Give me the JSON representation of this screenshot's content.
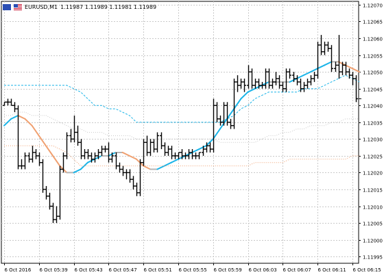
{
  "header": {
    "symbol": "EURUSD,M1",
    "ohlc": "1.11987 1.11989 1.11981 1.11989",
    "flags": [
      "flag-eu-icon",
      "flag-us-icon"
    ]
  },
  "chart_data": {
    "type": "candlestick",
    "symbol": "EURUSD",
    "timeframe": "M1",
    "ylim": [
      1.11993,
      1.12071
    ],
    "y_ticks": [
      "1.12070",
      "1.12065",
      "1.12060",
      "1.12055",
      "1.12050",
      "1.12045",
      "1.12040",
      "1.12035",
      "1.12030",
      "1.12025",
      "1.12020",
      "1.12015",
      "1.12010",
      "1.12005",
      "1.12000",
      "1.11995"
    ],
    "x_ticks": [
      "6 Oct 2016",
      "6 Oct 05:39",
      "6 Oct 05:43",
      "6 Oct 05:47",
      "6 Oct 05:51",
      "6 Oct 05:55",
      "6 Oct 05:59",
      "6 Oct 06:03",
      "6 Oct 06:07",
      "6 Oct 06:11",
      "6 Oct 06:15"
    ],
    "x_tick_bars": [
      0,
      10,
      20,
      30,
      40,
      50,
      60,
      70,
      80,
      90,
      100
    ],
    "grid": true,
    "bar_colors": {
      "up": "#000000",
      "down": "#000000"
    },
    "bars": [
      {
        "o": 1.1204,
        "h": 1.12041,
        "l": 1.1204,
        "c": 1.12041
      },
      {
        "o": 1.12041,
        "h": 1.12042,
        "l": 1.1204,
        "c": 1.12041
      },
      {
        "o": 1.12041,
        "h": 1.12042,
        "l": 1.1204,
        "c": 1.1204
      },
      {
        "o": 1.1204,
        "h": 1.12041,
        "l": 1.12038,
        "c": 1.12039
      },
      {
        "o": 1.12039,
        "h": 1.1204,
        "l": 1.12021,
        "c": 1.12022
      },
      {
        "o": 1.12022,
        "h": 1.12024,
        "l": 1.12021,
        "c": 1.12022
      },
      {
        "o": 1.12022,
        "h": 1.12026,
        "l": 1.12021,
        "c": 1.12025
      },
      {
        "o": 1.12025,
        "h": 1.12026,
        "l": 1.12023,
        "c": 1.12024
      },
      {
        "o": 1.12024,
        "h": 1.12028,
        "l": 1.12023,
        "c": 1.12026
      },
      {
        "o": 1.12026,
        "h": 1.12027,
        "l": 1.12024,
        "c": 1.12025
      },
      {
        "o": 1.12025,
        "h": 1.12026,
        "l": 1.12022,
        "c": 1.12023
      },
      {
        "o": 1.12023,
        "h": 1.12024,
        "l": 1.12014,
        "c": 1.12015
      },
      {
        "o": 1.12015,
        "h": 1.12016,
        "l": 1.12012,
        "c": 1.12013
      },
      {
        "o": 1.12013,
        "h": 1.12014,
        "l": 1.12009,
        "c": 1.1201
      },
      {
        "o": 1.1201,
        "h": 1.12011,
        "l": 1.12005,
        "c": 1.12006
      },
      {
        "o": 1.12006,
        "h": 1.1201,
        "l": 1.12005,
        "c": 1.12007
      },
      {
        "o": 1.12007,
        "h": 1.12022,
        "l": 1.12006,
        "c": 1.12021
      },
      {
        "o": 1.12021,
        "h": 1.12026,
        "l": 1.1202,
        "c": 1.12025
      },
      {
        "o": 1.12025,
        "h": 1.12032,
        "l": 1.12024,
        "c": 1.12031
      },
      {
        "o": 1.12031,
        "h": 1.12033,
        "l": 1.12029,
        "c": 1.1203
      },
      {
        "o": 1.1203,
        "h": 1.12037,
        "l": 1.12029,
        "c": 1.12032
      },
      {
        "o": 1.12032,
        "h": 1.12034,
        "l": 1.12028,
        "c": 1.12029
      },
      {
        "o": 1.12029,
        "h": 1.1203,
        "l": 1.12024,
        "c": 1.12025
      },
      {
        "o": 1.12025,
        "h": 1.12027,
        "l": 1.12024,
        "c": 1.12026
      },
      {
        "o": 1.12026,
        "h": 1.12027,
        "l": 1.12024,
        "c": 1.12025
      },
      {
        "o": 1.12025,
        "h": 1.12026,
        "l": 1.12023,
        "c": 1.12024
      },
      {
        "o": 1.12024,
        "h": 1.12026,
        "l": 1.12023,
        "c": 1.12025
      },
      {
        "o": 1.12025,
        "h": 1.12027,
        "l": 1.12024,
        "c": 1.12026
      },
      {
        "o": 1.12026,
        "h": 1.12028,
        "l": 1.12025,
        "c": 1.12027
      },
      {
        "o": 1.12027,
        "h": 1.12028,
        "l": 1.12026,
        "c": 1.12027
      },
      {
        "o": 1.12027,
        "h": 1.12029,
        "l": 1.12023,
        "c": 1.12024
      },
      {
        "o": 1.12024,
        "h": 1.12026,
        "l": 1.12023,
        "c": 1.12025
      },
      {
        "o": 1.12025,
        "h": 1.12026,
        "l": 1.12021,
        "c": 1.12022
      },
      {
        "o": 1.12022,
        "h": 1.12023,
        "l": 1.1202,
        "c": 1.12021
      },
      {
        "o": 1.12021,
        "h": 1.12022,
        "l": 1.12019,
        "c": 1.1202
      },
      {
        "o": 1.1202,
        "h": 1.12021,
        "l": 1.12018,
        "c": 1.1202
      },
      {
        "o": 1.1202,
        "h": 1.12021,
        "l": 1.12017,
        "c": 1.12018
      },
      {
        "o": 1.12018,
        "h": 1.12019,
        "l": 1.12015,
        "c": 1.12016
      },
      {
        "o": 1.12016,
        "h": 1.12017,
        "l": 1.12013,
        "c": 1.12014
      },
      {
        "o": 1.12014,
        "h": 1.12024,
        "l": 1.12013,
        "c": 1.12023
      },
      {
        "o": 1.12023,
        "h": 1.1203,
        "l": 1.12022,
        "c": 1.12029
      },
      {
        "o": 1.12029,
        "h": 1.12031,
        "l": 1.12025,
        "c": 1.12026
      },
      {
        "o": 1.12026,
        "h": 1.1203,
        "l": 1.12025,
        "c": 1.12029
      },
      {
        "o": 1.12029,
        "h": 1.1203,
        "l": 1.12026,
        "c": 1.12027
      },
      {
        "o": 1.12027,
        "h": 1.12032,
        "l": 1.12026,
        "c": 1.12031
      },
      {
        "o": 1.12031,
        "h": 1.12032,
        "l": 1.12027,
        "c": 1.12028
      },
      {
        "o": 1.12028,
        "h": 1.12029,
        "l": 1.12025,
        "c": 1.12026
      },
      {
        "o": 1.12026,
        "h": 1.12028,
        "l": 1.12025,
        "c": 1.12027
      },
      {
        "o": 1.12027,
        "h": 1.12028,
        "l": 1.12024,
        "c": 1.12025
      },
      {
        "o": 1.12025,
        "h": 1.12026,
        "l": 1.12024,
        "c": 1.12025
      },
      {
        "o": 1.12025,
        "h": 1.12026,
        "l": 1.12024,
        "c": 1.12026
      },
      {
        "o": 1.12026,
        "h": 1.12027,
        "l": 1.12024,
        "c": 1.12025
      },
      {
        "o": 1.12025,
        "h": 1.12026,
        "l": 1.12024,
        "c": 1.12025
      },
      {
        "o": 1.12025,
        "h": 1.12027,
        "l": 1.12024,
        "c": 1.12026
      },
      {
        "o": 1.12026,
        "h": 1.12027,
        "l": 1.12024,
        "c": 1.12025
      },
      {
        "o": 1.12025,
        "h": 1.12026,
        "l": 1.12024,
        "c": 1.12025
      },
      {
        "o": 1.12025,
        "h": 1.12026,
        "l": 1.12024,
        "c": 1.12026
      },
      {
        "o": 1.12026,
        "h": 1.12028,
        "l": 1.12025,
        "c": 1.12027
      },
      {
        "o": 1.12027,
        "h": 1.12029,
        "l": 1.12026,
        "c": 1.12028
      },
      {
        "o": 1.12028,
        "h": 1.12029,
        "l": 1.12026,
        "c": 1.12027
      },
      {
        "o": 1.12027,
        "h": 1.12042,
        "l": 1.12026,
        "c": 1.1204
      },
      {
        "o": 1.1204,
        "h": 1.12041,
        "l": 1.12035,
        "c": 1.12036
      },
      {
        "o": 1.12036,
        "h": 1.12037,
        "l": 1.12034,
        "c": 1.12035
      },
      {
        "o": 1.12035,
        "h": 1.12041,
        "l": 1.12034,
        "c": 1.1204
      },
      {
        "o": 1.1204,
        "h": 1.12041,
        "l": 1.12034,
        "c": 1.12035
      },
      {
        "o": 1.12035,
        "h": 1.12036,
        "l": 1.12033,
        "c": 1.12034
      },
      {
        "o": 1.12034,
        "h": 1.12048,
        "l": 1.12033,
        "c": 1.12047
      },
      {
        "o": 1.12047,
        "h": 1.12049,
        "l": 1.12044,
        "c": 1.12046
      },
      {
        "o": 1.12046,
        "h": 1.12048,
        "l": 1.12045,
        "c": 1.12047
      },
      {
        "o": 1.12047,
        "h": 1.12048,
        "l": 1.12044,
        "c": 1.12046
      },
      {
        "o": 1.12046,
        "h": 1.12052,
        "l": 1.12045,
        "c": 1.1205
      },
      {
        "o": 1.1205,
        "h": 1.12051,
        "l": 1.12045,
        "c": 1.12046
      },
      {
        "o": 1.12046,
        "h": 1.12048,
        "l": 1.12045,
        "c": 1.12047
      },
      {
        "o": 1.12047,
        "h": 1.12048,
        "l": 1.12045,
        "c": 1.12046
      },
      {
        "o": 1.12046,
        "h": 1.12047,
        "l": 1.12045,
        "c": 1.12046
      },
      {
        "o": 1.12046,
        "h": 1.12051,
        "l": 1.12045,
        "c": 1.1205
      },
      {
        "o": 1.1205,
        "h": 1.12051,
        "l": 1.12045,
        "c": 1.12046
      },
      {
        "o": 1.12046,
        "h": 1.12048,
        "l": 1.12045,
        "c": 1.12047
      },
      {
        "o": 1.12047,
        "h": 1.1205,
        "l": 1.12046,
        "c": 1.12048
      },
      {
        "o": 1.12048,
        "h": 1.12049,
        "l": 1.12045,
        "c": 1.12046
      },
      {
        "o": 1.12046,
        "h": 1.12047,
        "l": 1.12044,
        "c": 1.12045
      },
      {
        "o": 1.12045,
        "h": 1.12051,
        "l": 1.12044,
        "c": 1.1205
      },
      {
        "o": 1.1205,
        "h": 1.12051,
        "l": 1.12048,
        "c": 1.12049
      },
      {
        "o": 1.12049,
        "h": 1.1205,
        "l": 1.12047,
        "c": 1.12048
      },
      {
        "o": 1.12048,
        "h": 1.12049,
        "l": 1.12046,
        "c": 1.12047
      },
      {
        "o": 1.12047,
        "h": 1.12048,
        "l": 1.12044,
        "c": 1.12045
      },
      {
        "o": 1.12045,
        "h": 1.12047,
        "l": 1.12044,
        "c": 1.12046
      },
      {
        "o": 1.12046,
        "h": 1.12048,
        "l": 1.12045,
        "c": 1.12047
      },
      {
        "o": 1.12047,
        "h": 1.12049,
        "l": 1.12046,
        "c": 1.12048
      },
      {
        "o": 1.12048,
        "h": 1.1205,
        "l": 1.12047,
        "c": 1.12049
      },
      {
        "o": 1.12049,
        "h": 1.12059,
        "l": 1.12048,
        "c": 1.12058
      },
      {
        "o": 1.12058,
        "h": 1.12061,
        "l": 1.12055,
        "c": 1.12056
      },
      {
        "o": 1.12056,
        "h": 1.12059,
        "l": 1.12055,
        "c": 1.12058
      },
      {
        "o": 1.12058,
        "h": 1.12059,
        "l": 1.12056,
        "c": 1.12057
      },
      {
        "o": 1.12057,
        "h": 1.12058,
        "l": 1.1205,
        "c": 1.12051
      },
      {
        "o": 1.12051,
        "h": 1.12053,
        "l": 1.1205,
        "c": 1.12052
      },
      {
        "o": 1.12052,
        "h": 1.12061,
        "l": 1.12048,
        "c": 1.1205
      },
      {
        "o": 1.1205,
        "h": 1.12053,
        "l": 1.12049,
        "c": 1.12052
      },
      {
        "o": 1.12052,
        "h": 1.12053,
        "l": 1.12049,
        "c": 1.1205
      },
      {
        "o": 1.1205,
        "h": 1.12051,
        "l": 1.12048,
        "c": 1.12049
      },
      {
        "o": 1.12049,
        "h": 1.1205,
        "l": 1.12046,
        "c": 1.12048
      },
      {
        "o": 1.12048,
        "h": 1.12049,
        "l": 1.12041,
        "c": 1.12042
      }
    ],
    "series": [
      {
        "style": "solid",
        "width": 2,
        "color_up": "#1ab4e8",
        "color_down": "#f0a070",
        "color_flat": "#b4b4b4",
        "x": [
          0,
          2,
          4,
          6,
          8,
          10,
          12,
          14,
          16,
          18,
          20,
          22,
          24,
          26,
          28,
          30,
          32,
          34,
          36,
          38,
          40,
          42,
          44,
          46,
          48,
          50,
          52,
          54,
          56,
          58,
          60,
          62,
          64,
          66,
          68,
          70,
          72,
          74,
          76,
          78,
          80,
          82,
          84,
          86,
          88,
          90,
          92,
          94,
          96,
          98,
          100,
          102
        ],
        "values": [
          1.12034,
          1.12036,
          1.12037,
          1.12036,
          1.12034,
          1.12031,
          1.12028,
          1.12025,
          1.12022,
          1.1202,
          1.1202,
          1.12021,
          1.12023,
          1.12024,
          1.12025,
          1.12025,
          1.12026,
          1.12026,
          1.12025,
          1.12024,
          1.12022,
          1.12021,
          1.12021,
          1.12022,
          1.12023,
          1.12024,
          1.12025,
          1.12026,
          1.12027,
          1.12028,
          1.1203,
          1.12033,
          1.12036,
          1.12039,
          1.12042,
          1.12044,
          1.12045,
          1.12046,
          1.12047,
          1.12047,
          1.12047,
          1.12047,
          1.12048,
          1.12049,
          1.1205,
          1.12051,
          1.12052,
          1.12053,
          1.12053,
          1.12052,
          1.12051,
          1.1205
        ]
      },
      {
        "style": "dashed",
        "width": 1,
        "color": "#1ab4e8",
        "x": [
          0,
          2,
          4,
          6,
          8,
          10,
          12,
          14,
          16,
          18,
          20,
          22,
          24,
          26,
          28,
          30,
          32,
          34,
          36,
          38,
          40,
          42,
          44,
          46,
          48,
          50,
          52,
          54,
          56,
          58,
          60,
          62,
          64,
          66,
          68,
          70,
          72,
          74,
          76,
          78,
          80,
          82,
          84,
          86,
          88,
          90,
          92,
          94,
          96,
          98,
          100,
          102
        ],
        "values": [
          1.12046,
          1.12046,
          1.12046,
          1.12046,
          1.12046,
          1.12046,
          1.12046,
          1.12046,
          1.12046,
          1.12046,
          1.12045,
          1.12044,
          1.12042,
          1.1204,
          1.1204,
          1.12039,
          1.12039,
          1.12038,
          1.12037,
          1.12035,
          1.12035,
          1.12035,
          1.12035,
          1.12035,
          1.12035,
          1.12035,
          1.12035,
          1.12035,
          1.12035,
          1.12035,
          1.12035,
          1.12035,
          1.12036,
          1.12037,
          1.12039,
          1.1204,
          1.12042,
          1.12043,
          1.12044,
          1.12044,
          1.12044,
          1.12044,
          1.12044,
          1.12045,
          1.12045,
          1.12045,
          1.12046,
          1.12047,
          1.12048,
          1.12049,
          1.12048,
          1.12047
        ]
      },
      {
        "style": "dotted",
        "width": 1,
        "color": "#c8c8c8",
        "x": [
          0,
          2,
          4,
          6,
          8,
          10,
          12,
          14,
          16,
          18,
          20,
          22,
          24,
          26,
          28,
          30,
          32,
          34,
          36,
          38,
          40,
          42,
          44,
          46,
          48,
          50,
          52,
          54,
          56,
          58,
          60,
          62,
          64,
          66,
          68,
          70,
          72,
          74,
          76,
          78,
          80,
          82,
          84,
          86,
          88,
          90,
          92,
          94,
          96,
          98,
          100,
          102
        ],
        "values": [
          1.12037,
          1.12037,
          1.12038,
          1.12038,
          1.12037,
          1.12037,
          1.12037,
          1.12036,
          1.12035,
          1.12034,
          1.12033,
          1.12033,
          1.12032,
          1.12032,
          1.12032,
          1.12031,
          1.12031,
          1.12031,
          1.12031,
          1.1203,
          1.1203,
          1.1203,
          1.1203,
          1.1203,
          1.1203,
          1.1203,
          1.1203,
          1.1203,
          1.1203,
          1.1203,
          1.1203,
          1.12029,
          1.12029,
          1.12029,
          1.12029,
          1.12029,
          1.12029,
          1.1203,
          1.12031,
          1.12031,
          1.12032,
          1.12032,
          1.12033,
          1.12033,
          1.12034,
          1.12034,
          1.12034,
          1.12035,
          1.12035,
          1.12036,
          1.12036,
          1.12036
        ]
      },
      {
        "style": "dotted",
        "width": 1,
        "color": "#f0a070",
        "x": [
          0,
          2,
          4,
          6,
          8,
          10,
          12,
          14,
          16,
          18,
          20,
          22,
          24,
          26,
          28,
          30,
          32,
          34,
          36,
          38,
          40,
          42,
          44,
          46,
          48,
          50,
          52,
          54,
          56,
          58,
          60,
          62,
          64,
          66,
          68,
          70,
          72,
          74,
          76,
          78,
          80,
          82,
          84,
          86,
          88,
          90,
          92,
          94,
          96,
          98,
          100,
          102
        ],
        "values": [
          1.12028,
          1.12028,
          1.12028,
          1.12028,
          1.12028,
          1.12028,
          1.12028,
          1.12028,
          1.12027,
          1.12026,
          1.12024,
          1.12022,
          1.12022,
          1.12022,
          1.12022,
          1.12022,
          1.12022,
          1.12022,
          1.12022,
          1.12022,
          1.12022,
          1.12022,
          1.12022,
          1.12022,
          1.12022,
          1.12022,
          1.12022,
          1.12022,
          1.12022,
          1.12022,
          1.12022,
          1.12022,
          1.12022,
          1.12022,
          1.12022,
          1.12022,
          1.12023,
          1.12023,
          1.12023,
          1.12023,
          1.12023,
          1.12024,
          1.12024,
          1.12024,
          1.12024,
          1.12024,
          1.12024,
          1.12024,
          1.12024,
          1.12024,
          1.12025,
          1.12025
        ]
      }
    ]
  }
}
